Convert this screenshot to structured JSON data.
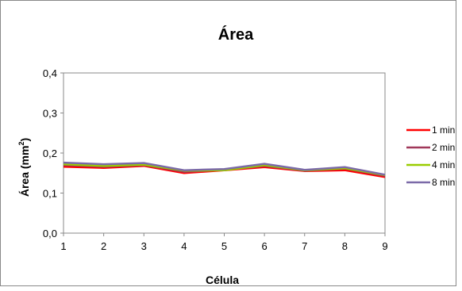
{
  "chart_data": {
    "type": "line",
    "title": "Área",
    "xlabel": "Célula",
    "ylabel": "Área (mm",
    "ylabel_sup": "2",
    "ylabel_end": ")",
    "x": [
      1,
      2,
      3,
      4,
      5,
      6,
      7,
      8,
      9
    ],
    "ylim": [
      0,
      0.4
    ],
    "yticks": [
      "0,0",
      "0,1",
      "0,2",
      "0,3",
      "0,4"
    ],
    "grid": false,
    "legend_position": "right",
    "series": [
      {
        "name": "1 min",
        "color": "#ff0000",
        "values": [
          0.166,
          0.163,
          0.168,
          0.15,
          0.157,
          0.165,
          0.155,
          0.157,
          0.14
        ]
      },
      {
        "name": "2 min",
        "color": "#a0385a",
        "values": [
          0.17,
          0.166,
          0.17,
          0.153,
          0.158,
          0.168,
          0.156,
          0.161,
          0.143
        ]
      },
      {
        "name": "4 min",
        "color": "#99cc00",
        "values": [
          0.172,
          0.168,
          0.171,
          0.156,
          0.157,
          0.17,
          0.157,
          0.162,
          0.145
        ]
      },
      {
        "name": "8 min",
        "color": "#7b6aa8",
        "values": [
          0.176,
          0.172,
          0.175,
          0.157,
          0.16,
          0.173,
          0.158,
          0.165,
          0.146
        ]
      }
    ]
  }
}
